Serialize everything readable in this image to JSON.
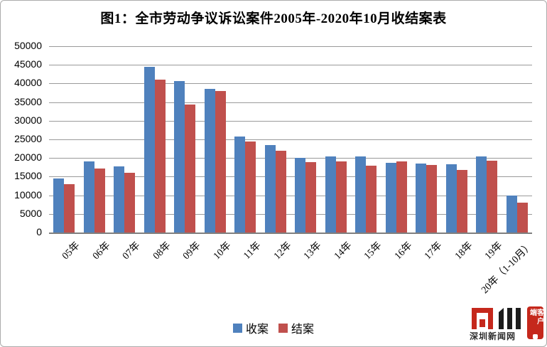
{
  "title": "图1：全市劳动争议诉讼案件2005年-2020年10月收结案表",
  "chart_data": {
    "type": "bar",
    "title": "图1：全市劳动争议诉讼案件2005年-2020年10月收结案表",
    "categories": [
      "05年",
      "06年",
      "07年",
      "08年",
      "09年",
      "10年",
      "11年",
      "12年",
      "13年",
      "14年",
      "15年",
      "16年",
      "17年",
      "18年",
      "19年",
      "20年（1-10月）"
    ],
    "series": [
      {
        "name": "收案",
        "color": "#4F81BD",
        "values": [
          14500,
          19000,
          17800,
          44500,
          40700,
          38600,
          25700,
          23400,
          20100,
          20400,
          20400,
          18700,
          18600,
          18300,
          20400,
          9900
        ]
      },
      {
        "name": "结案",
        "color": "#C0504D",
        "values": [
          12900,
          17200,
          16100,
          41000,
          34300,
          37900,
          24500,
          22000,
          18800,
          19000,
          17900,
          19000,
          18100,
          16700,
          19200,
          8100
        ]
      }
    ],
    "xlabel": "",
    "ylabel": "",
    "ylim": [
      0,
      50000
    ],
    "ytick_step": 5000,
    "grid": true,
    "legend_position": "bottom",
    "gridline_color": "#9a9a9a"
  },
  "watermark": {
    "site_name": "深圳新闻网",
    "badge_text": "客户端",
    "brand_color": "#c5281c"
  }
}
